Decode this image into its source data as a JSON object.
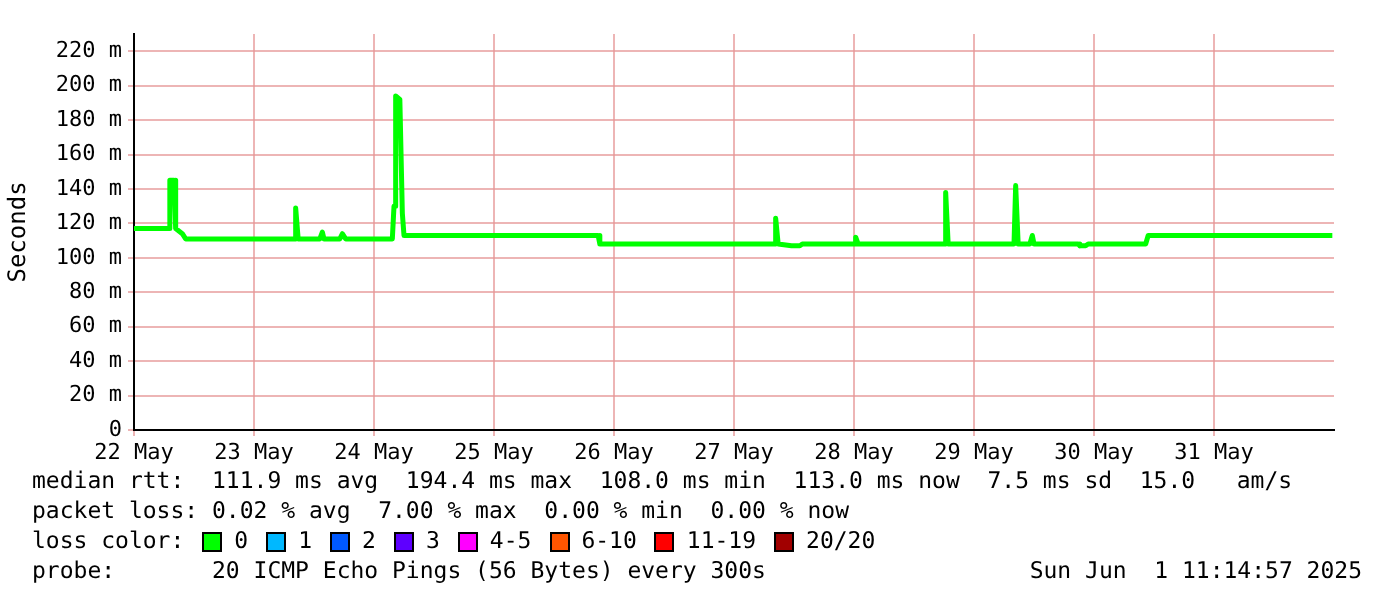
{
  "chart_data": {
    "type": "line",
    "ylabel": "Seconds",
    "x": [
      "2025-05-22T00:00",
      "2025-05-22T06:50",
      "2025-05-22T07:10",
      "2025-05-22T08:00",
      "2025-05-22T08:20",
      "2025-05-22T09:40",
      "2025-05-22T10:20",
      "2025-05-23T08:00",
      "2025-05-23T08:20",
      "2025-05-23T08:50",
      "2025-05-23T13:10",
      "2025-05-23T13:40",
      "2025-05-23T14:00",
      "2025-05-23T17:10",
      "2025-05-23T17:40",
      "2025-05-23T18:20",
      "2025-05-24T03:40",
      "2025-05-24T04:00",
      "2025-05-24T04:20",
      "2025-05-24T05:10",
      "2025-05-24T05:40",
      "2025-05-24T06:00",
      "2025-05-25T20:50",
      "2025-05-25T21:10",
      "2025-05-27T08:00",
      "2025-05-27T08:20",
      "2025-05-27T08:50",
      "2025-05-27T11:30",
      "2025-05-27T13:10",
      "2025-05-27T13:40",
      "2025-05-28T00:00",
      "2025-05-28T00:20",
      "2025-05-28T00:50",
      "2025-05-28T18:00",
      "2025-05-28T18:20",
      "2025-05-28T18:50",
      "2025-05-29T08:00",
      "2025-05-29T08:20",
      "2025-05-29T08:50",
      "2025-05-29T11:10",
      "2025-05-29T11:40",
      "2025-05-29T12:00",
      "2025-05-29T20:50",
      "2025-05-29T21:10",
      "2025-05-29T22:20",
      "2025-05-29T22:50",
      "2025-05-30T10:20",
      "2025-05-30T10:50",
      "2025-05-31T23:40"
    ],
    "series": [
      {
        "name": "0",
        "color": "#00ff00",
        "values": [
          117,
          117,
          145,
          145,
          117,
          114,
          111,
          111,
          129,
          111,
          111,
          115,
          111,
          111,
          114,
          111,
          111,
          130,
          194,
          192,
          126,
          113,
          113,
          108,
          108,
          123,
          108,
          107,
          107,
          108,
          108,
          112,
          108,
          108,
          138,
          108,
          108,
          142,
          108,
          108,
          113,
          108,
          108,
          107,
          107,
          108,
          108,
          113,
          113
        ]
      },
      {
        "name": "1",
        "color": "#00b8ff",
        "values": [
          null,
          null,
          null,
          null,
          null,
          null,
          null,
          null,
          null,
          null,
          null,
          null,
          null,
          null,
          null,
          null,
          null,
          null,
          null,
          null,
          null,
          null,
          null,
          null,
          null,
          null,
          null,
          null,
          null,
          null,
          null,
          null,
          null,
          null,
          null,
          null,
          null,
          null,
          null,
          null,
          null,
          null,
          null,
          null,
          null,
          null,
          null,
          null,
          null
        ]
      },
      {
        "name": "2",
        "color": "#0059ff",
        "values": [
          null,
          null,
          null,
          null,
          null,
          null,
          null,
          null,
          null,
          null,
          null,
          null,
          null,
          null,
          null,
          null,
          null,
          null,
          null,
          null,
          null,
          null,
          null,
          null,
          null,
          null,
          null,
          null,
          null,
          null,
          null,
          null,
          null,
          null,
          null,
          null,
          null,
          null,
          null,
          null,
          null,
          null,
          null,
          null,
          null,
          null,
          null,
          null,
          null
        ]
      },
      {
        "name": "3",
        "color": "#5e00ff",
        "values": [
          null,
          null,
          null,
          null,
          null,
          null,
          null,
          null,
          null,
          null,
          null,
          null,
          null,
          null,
          null,
          null,
          null,
          null,
          null,
          null,
          null,
          null,
          null,
          null,
          null,
          null,
          null,
          null,
          null,
          null,
          null,
          null,
          null,
          null,
          null,
          null,
          null,
          null,
          null,
          null,
          null,
          null,
          null,
          null,
          null,
          null,
          null,
          null,
          null
        ]
      },
      {
        "name": "4-5",
        "color": "#ff00ff",
        "values": [
          null,
          null,
          null,
          null,
          null,
          null,
          null,
          null,
          null,
          null,
          null,
          null,
          null,
          null,
          null,
          null,
          null,
          null,
          null,
          null,
          null,
          null,
          null,
          null,
          null,
          null,
          null,
          null,
          null,
          null,
          null,
          null,
          null,
          null,
          null,
          null,
          null,
          null,
          null,
          null,
          null,
          null,
          null,
          null,
          null,
          null,
          null,
          null,
          null
        ]
      },
      {
        "name": "6-10",
        "color": "#ff5500",
        "values": [
          null,
          null,
          null,
          null,
          null,
          null,
          null,
          null,
          null,
          null,
          null,
          null,
          null,
          null,
          null,
          null,
          null,
          null,
          null,
          null,
          null,
          null,
          null,
          null,
          null,
          null,
          null,
          null,
          null,
          null,
          null,
          null,
          null,
          null,
          null,
          null,
          null,
          null,
          null,
          null,
          null,
          null,
          null,
          null,
          null,
          null,
          null,
          null,
          null
        ]
      },
      {
        "name": "11-19",
        "color": "#ff0000",
        "values": [
          null,
          null,
          null,
          null,
          null,
          null,
          null,
          null,
          null,
          null,
          null,
          null,
          null,
          null,
          null,
          null,
          null,
          null,
          null,
          null,
          null,
          null,
          null,
          null,
          null,
          null,
          null,
          null,
          null,
          null,
          null,
          null,
          null,
          null,
          null,
          null,
          null,
          null,
          null,
          null,
          null,
          null,
          null,
          null,
          null,
          null,
          null,
          null,
          null
        ]
      },
      {
        "name": "20/20",
        "color": "#a10000",
        "values": [
          null,
          null,
          null,
          null,
          null,
          null,
          null,
          null,
          null,
          null,
          null,
          null,
          null,
          null,
          null,
          null,
          null,
          null,
          null,
          null,
          null,
          null,
          null,
          null,
          null,
          null,
          null,
          null,
          null,
          null,
          null,
          null,
          null,
          null,
          null,
          null,
          null,
          null,
          null,
          null,
          null,
          null,
          null,
          null,
          null,
          null,
          null,
          null,
          null
        ]
      }
    ],
    "xlim": [
      "2025-05-22T00:00",
      "2025-06-01T00:00"
    ],
    "xticks": [
      {
        "value": "2025-05-22T00:00",
        "label": "22 May"
      },
      {
        "value": "2025-05-23T00:00",
        "label": "23 May"
      },
      {
        "value": "2025-05-24T00:00",
        "label": "24 May"
      },
      {
        "value": "2025-05-25T00:00",
        "label": "25 May"
      },
      {
        "value": "2025-05-26T00:00",
        "label": "26 May"
      },
      {
        "value": "2025-05-27T00:00",
        "label": "27 May"
      },
      {
        "value": "2025-05-28T00:00",
        "label": "28 May"
      },
      {
        "value": "2025-05-29T00:00",
        "label": "29 May"
      },
      {
        "value": "2025-05-30T00:00",
        "label": "30 May"
      },
      {
        "value": "2025-05-31T00:00",
        "label": "31 May"
      }
    ],
    "ylim": [
      0,
      230
    ],
    "yticks": [
      0,
      {
        "value": 20,
        "label": "20 m"
      },
      {
        "value": 40,
        "label": "40 m"
      },
      {
        "value": 60,
        "label": "60 m"
      },
      {
        "value": 80,
        "label": "80 m"
      },
      {
        "value": 100,
        "label": "100 m"
      },
      {
        "value": 120,
        "label": "120 m"
      },
      {
        "value": 140,
        "label": "140 m"
      },
      {
        "value": 160,
        "label": "160 m"
      },
      {
        "value": 180,
        "label": "180 m"
      },
      {
        "value": 200,
        "label": "200 m"
      },
      {
        "value": 220,
        "label": "220 m"
      }
    ],
    "grid": true,
    "legend": "bottom",
    "marker": "none",
    "line_style": "solid",
    "annotations": [
      "median rtt:  111.9 ms avg  194.4 ms max  108.0 ms min  113.0 ms now  7.5 ms sd  15.0   am/s",
      "packet loss: 0.02 % avg  7.00 % max  0.00 % min  0.00 % now",
      "loss color:",
      "probe:       20 ICMP Echo Pings (56 Bytes) every 300s",
      "Sun Jun  1 11:14:57 2025"
    ]
  }
}
